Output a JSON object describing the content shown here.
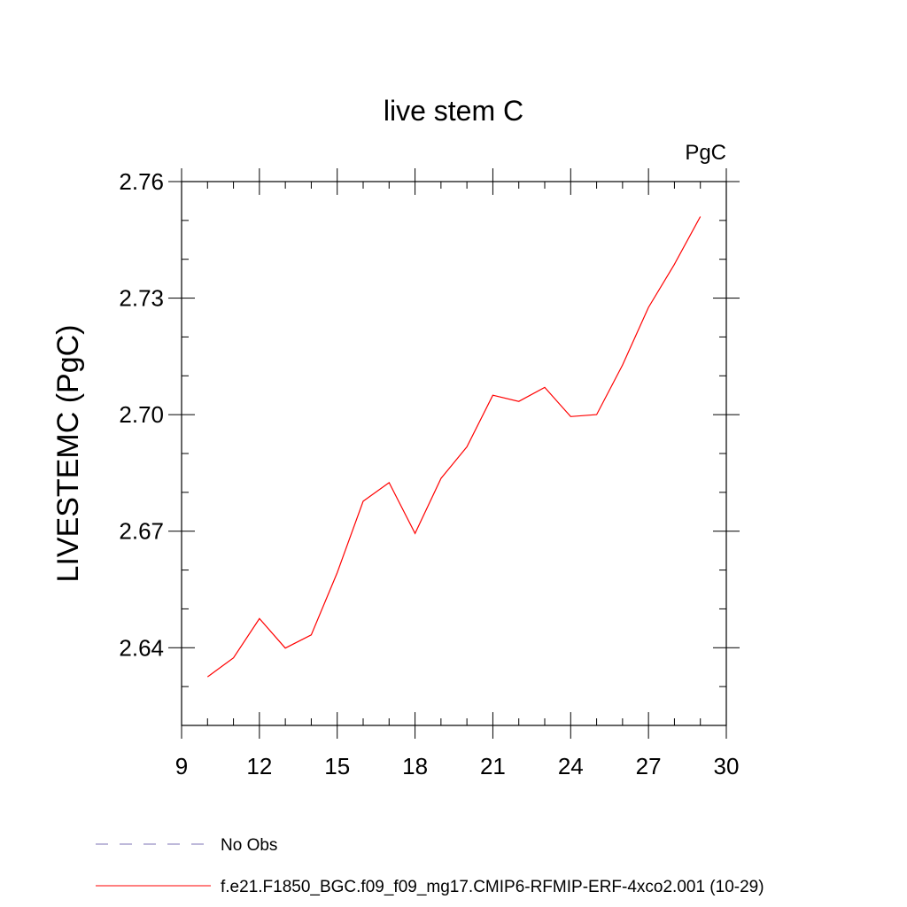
{
  "chart_data": {
    "type": "line",
    "title": "live stem C",
    "units": "PgC",
    "ylabel": "LIVESTEMC  (PgC)",
    "xlabel": "",
    "xlim": [
      9,
      30
    ],
    "ylim": [
      2.62,
      2.76
    ],
    "x_ticks": [
      9,
      12,
      15,
      18,
      21,
      24,
      27,
      30
    ],
    "x_tick_labels": [
      "9",
      "12",
      "15",
      "18",
      "21",
      "24",
      "27",
      "30"
    ],
    "y_ticks": [
      2.64,
      2.67,
      2.7,
      2.73,
      2.76
    ],
    "y_tick_labels": [
      "2.64",
      "2.67",
      "2.70",
      "2.73",
      "2.76"
    ],
    "grid": false,
    "series": [
      {
        "name": "f.e21.F1850_BGC.f09_f09_mg17.CMIP6-RFMIP-ERF-4xco2.001 (10-29)",
        "color": "#ff0000",
        "x": [
          10,
          11,
          12,
          13,
          14,
          15,
          16,
          17,
          18,
          19,
          20,
          21,
          22,
          23,
          24,
          25,
          26,
          27,
          28,
          29
        ],
        "y": [
          2.6325,
          2.6374,
          2.6475,
          2.6399,
          2.6433,
          2.6593,
          2.6777,
          2.6825,
          2.6694,
          2.6836,
          2.6917,
          2.705,
          2.7034,
          2.707,
          2.6995,
          2.7,
          2.7128,
          2.7276,
          2.7387,
          2.751
        ]
      }
    ],
    "legend": {
      "placement": "bottom-left",
      "entries": [
        {
          "label": "No Obs",
          "style": "dashed",
          "color": "#7d73b5"
        },
        {
          "label": "f.e21.F1850_BGC.f09_f09_mg17.CMIP6-RFMIP-ERF-4xco2.001 (10-29)",
          "style": "solid",
          "color": "#ff0000"
        }
      ]
    }
  }
}
